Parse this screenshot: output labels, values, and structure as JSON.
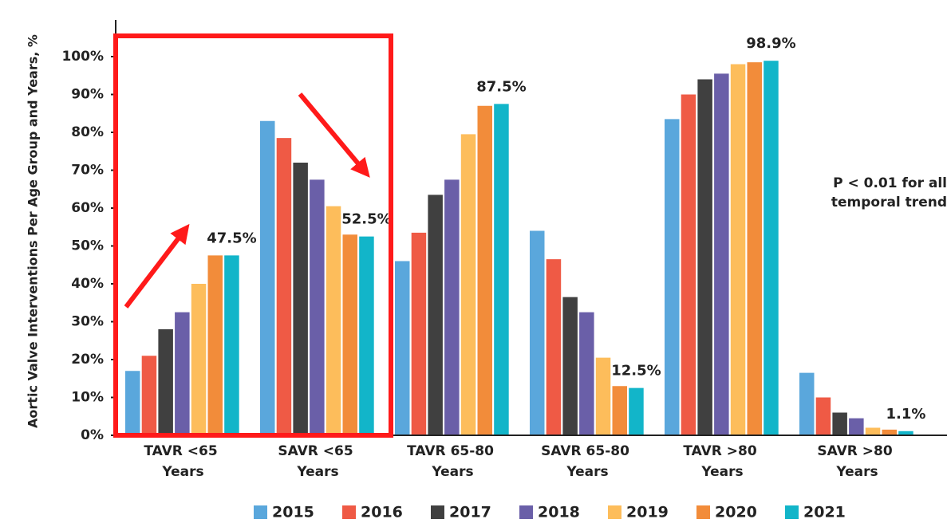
{
  "chart_data": {
    "type": "bar",
    "y_label": "Aortic Valve Interventions Per Age Group and Years, %",
    "categories": [
      "TAVR <65 Years",
      "SAVR <65 Years",
      "TAVR 65-80 Years",
      "SAVR 65-80 Years",
      "TAVR >80 Years",
      "SAVR >80 Years"
    ],
    "series": [
      {
        "name": "2015",
        "color": "#5aa7dc",
        "values": [
          17,
          83,
          46,
          54,
          83.5,
          16.5
        ]
      },
      {
        "name": "2016",
        "color": "#ef5a45",
        "values": [
          21,
          78.5,
          53.5,
          46.5,
          90,
          10
        ]
      },
      {
        "name": "2017",
        "color": "#404040",
        "values": [
          28,
          72,
          63.5,
          36.5,
          94,
          6
        ]
      },
      {
        "name": "2018",
        "color": "#6a5fa8",
        "values": [
          32.5,
          67.5,
          67.5,
          32.5,
          95.5,
          4.5
        ]
      },
      {
        "name": "2019",
        "color": "#fdbd5b",
        "values": [
          40,
          60.5,
          79.5,
          20.5,
          98,
          2
        ]
      },
      {
        "name": "2020",
        "color": "#f28c3a",
        "values": [
          47.5,
          53,
          87,
          13,
          98.5,
          1.5
        ]
      },
      {
        "name": "2021",
        "color": "#12b5c9",
        "values": [
          47.5,
          52.5,
          87.5,
          12.5,
          98.9,
          1.1
        ],
        "value_labels": [
          "47.5%",
          "52.5%",
          "87.5%",
          "12.5%",
          "98.9%",
          "1.1%"
        ]
      }
    ],
    "ylim": [
      0,
      100
    ],
    "yticks": [
      {
        "value": 0,
        "label": "0%"
      },
      {
        "value": 10,
        "label": "10%"
      },
      {
        "value": 20,
        "label": "20%"
      },
      {
        "value": 30,
        "label": "30%"
      },
      {
        "value": 40,
        "label": "40%"
      },
      {
        "value": 50,
        "label": "50%"
      },
      {
        "value": 60,
        "label": "60%"
      },
      {
        "value": 70,
        "label": "70%"
      },
      {
        "value": 80,
        "label": "80%"
      },
      {
        "value": 90,
        "label": "90%"
      },
      {
        "value": 100,
        "label": "100%"
      }
    ],
    "annotation": [
      "P < 0.01 for all",
      "temporal trend"
    ],
    "legend": "bottom"
  }
}
